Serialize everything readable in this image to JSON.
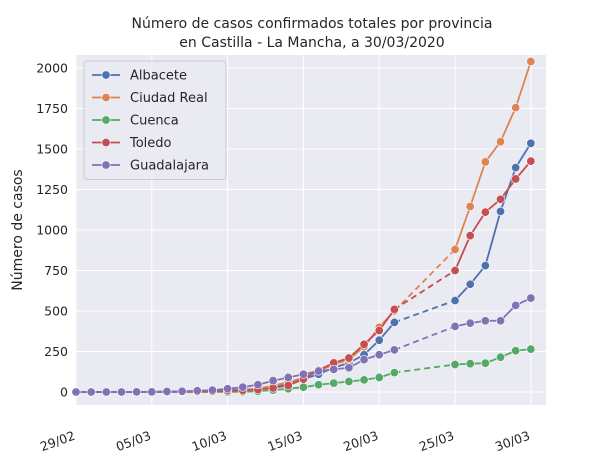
{
  "chart_data": {
    "type": "line",
    "title": [
      "Número de casos confirmados totales por provincia",
      "en Castilla - La Mancha, a 30/03/2020"
    ],
    "xlabel": "",
    "ylabel": "Número de casos",
    "xlim": [
      0,
      31
    ],
    "ylim": [
      -80,
      2080
    ],
    "yticks": [
      0,
      250,
      500,
      750,
      1000,
      1250,
      1500,
      1750,
      2000
    ],
    "ytick_labels": [
      "0",
      "250",
      "500",
      "750",
      "1000",
      "1250",
      "1500",
      "1750",
      "2000"
    ],
    "xticks": [
      0,
      5,
      10,
      15,
      20,
      25,
      30
    ],
    "xtick_labels": [
      "29/02",
      "05/03",
      "10/03",
      "15/03",
      "20/03",
      "25/03",
      "30/03"
    ],
    "grid": true,
    "legend_position": "top-left",
    "x": [
      0,
      1,
      2,
      3,
      4,
      5,
      6,
      7,
      8,
      9,
      10,
      11,
      12,
      13,
      14,
      15,
      16,
      17,
      18,
      19,
      20,
      21,
      25,
      26,
      27,
      28,
      29,
      30
    ],
    "gap_after_x": 21,
    "series": [
      {
        "name": "Albacete",
        "color": "#4c72b0",
        "values": [
          0,
          0,
          0,
          0,
          1,
          2,
          2,
          3,
          4,
          8,
          10,
          14,
          20,
          30,
          50,
          80,
          110,
          150,
          180,
          230,
          320,
          430,
          565,
          665,
          780,
          1115,
          1385,
          1535
        ]
      },
      {
        "name": "Ciudad Real",
        "color": "#dd8452",
        "values": [
          0,
          0,
          0,
          0,
          1,
          1,
          2,
          2,
          3,
          4,
          5,
          10,
          20,
          40,
          60,
          90,
          130,
          170,
          200,
          280,
          400,
          500,
          880,
          1145,
          1420,
          1545,
          1755,
          2040
        ]
      },
      {
        "name": "Cuenca",
        "color": "#55a868",
        "values": [
          0,
          0,
          0,
          0,
          0,
          0,
          0,
          0,
          0,
          0,
          1,
          2,
          5,
          12,
          20,
          30,
          45,
          55,
          65,
          75,
          90,
          120,
          170,
          175,
          178,
          215,
          255,
          265
        ]
      },
      {
        "name": "Toledo",
        "color": "#c44e52",
        "values": [
          0,
          0,
          0,
          0,
          1,
          1,
          2,
          3,
          3,
          5,
          8,
          10,
          15,
          25,
          40,
          80,
          135,
          180,
          210,
          295,
          380,
          510,
          750,
          965,
          1110,
          1190,
          1315,
          1425
        ]
      },
      {
        "name": "Guadalajara",
        "color": "#8172b3",
        "values": [
          0,
          0,
          0,
          0,
          1,
          1,
          3,
          5,
          8,
          12,
          20,
          30,
          45,
          70,
          90,
          110,
          130,
          140,
          150,
          200,
          230,
          260,
          405,
          425,
          440,
          440,
          535,
          580
        ]
      }
    ]
  }
}
